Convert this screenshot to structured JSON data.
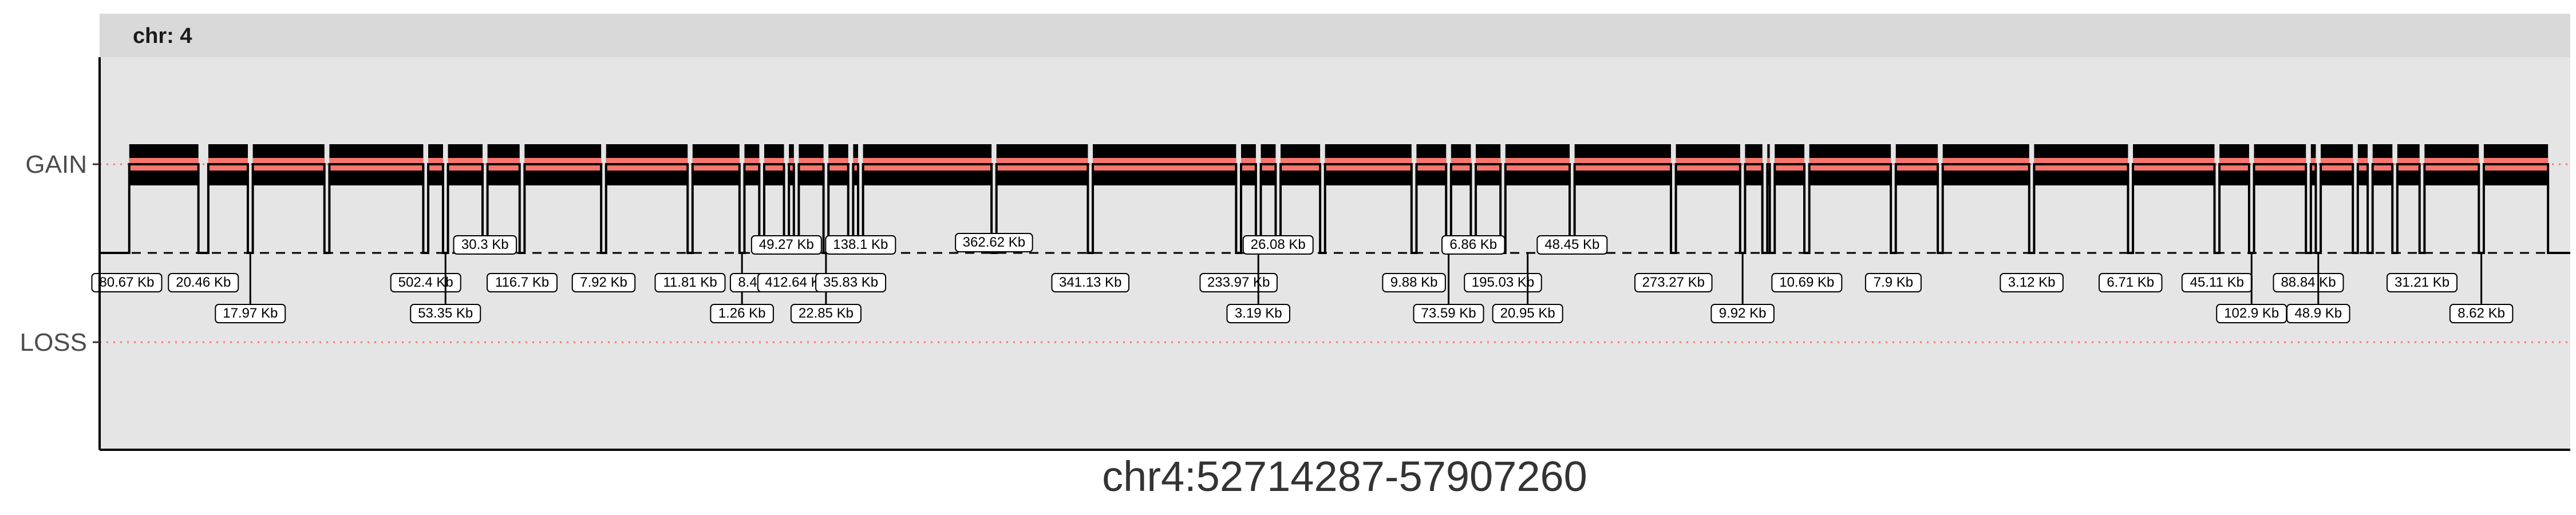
{
  "chart_data": {
    "type": "line",
    "panel_strip": "chr: 4",
    "xlabel": "chr4:52714287-57907260",
    "ylabel": "",
    "y_levels": [
      "GAIN",
      "LOSS"
    ],
    "ylim": [
      -1.6,
      1.3
    ],
    "xlim": [
      0,
      1
    ],
    "grid": false,
    "legend": "none",
    "colors": {
      "panel_bg": "#e5e5e5",
      "strip_bg": "#d9d9d9",
      "gain_band": "#f8766d",
      "loss_line": "#f8766d",
      "trace": "#000000",
      "axis": "#000000"
    },
    "gain_segments": [
      [
        0.012,
        0.04
      ],
      [
        0.044,
        0.06
      ],
      [
        0.062,
        0.091
      ],
      [
        0.093,
        0.131
      ],
      [
        0.133,
        0.139
      ],
      [
        0.141,
        0.155
      ],
      [
        0.157,
        0.17
      ],
      [
        0.172,
        0.203
      ],
      [
        0.205,
        0.238
      ],
      [
        0.24,
        0.259
      ],
      [
        0.261,
        0.267
      ],
      [
        0.269,
        0.277
      ],
      [
        0.279,
        0.281
      ],
      [
        0.283,
        0.293
      ],
      [
        0.295,
        0.303
      ],
      [
        0.305,
        0.307
      ],
      [
        0.309,
        0.361
      ],
      [
        0.363,
        0.4
      ],
      [
        0.402,
        0.46
      ],
      [
        0.462,
        0.468
      ],
      [
        0.47,
        0.476
      ],
      [
        0.478,
        0.494
      ],
      [
        0.496,
        0.531
      ],
      [
        0.533,
        0.545
      ],
      [
        0.547,
        0.555
      ],
      [
        0.557,
        0.567
      ],
      [
        0.569,
        0.595
      ],
      [
        0.597,
        0.636
      ],
      [
        0.638,
        0.664
      ],
      [
        0.666,
        0.673
      ],
      [
        0.675,
        0.676
      ],
      [
        0.678,
        0.69
      ],
      [
        0.692,
        0.725
      ],
      [
        0.727,
        0.744
      ],
      [
        0.746,
        0.781
      ],
      [
        0.783,
        0.821
      ],
      [
        0.823,
        0.856
      ],
      [
        0.858,
        0.87
      ],
      [
        0.872,
        0.893
      ],
      [
        0.895,
        0.897
      ],
      [
        0.899,
        0.912
      ],
      [
        0.914,
        0.918
      ],
      [
        0.92,
        0.928
      ],
      [
        0.93,
        0.939
      ],
      [
        0.941,
        0.963
      ],
      [
        0.965,
        0.991
      ]
    ],
    "gaps": [
      {
        "label": "80.67 Kb",
        "x": 0.011,
        "depth": 0
      },
      {
        "label": "20.46 Kb",
        "x": 0.042,
        "depth": 0
      },
      {
        "label": "17.97 Kb",
        "x": 0.061,
        "depth": 0
      },
      {
        "label": "502.4 Kb",
        "x": 0.132,
        "depth": 0
      },
      {
        "label": "53.35 Kb",
        "x": 0.14,
        "depth": 0
      },
      {
        "label": "30.3 Kb",
        "x": 0.156,
        "depth": 0
      },
      {
        "label": "116.7 Kb",
        "x": 0.171,
        "depth": 0
      },
      {
        "label": "7.92 Kb",
        "x": 0.204,
        "depth": 0
      },
      {
        "label": "11.81 Kb",
        "x": 0.239,
        "depth": 0
      },
      {
        "label": "1.26 Kb",
        "x": 0.26,
        "depth": 0
      },
      {
        "label": "8.45 Kb",
        "x": 0.268,
        "depth": 0
      },
      {
        "label": "49.27 Kb",
        "x": 0.278,
        "depth": 0
      },
      {
        "label": "412.64 Kb",
        "x": 0.282,
        "depth": 0
      },
      {
        "label": "22.85 Kb",
        "x": 0.294,
        "depth": 0
      },
      {
        "label": "35.83 Kb",
        "x": 0.304,
        "depth": 0
      },
      {
        "label": "138.1 Kb",
        "x": 0.308,
        "depth": 0
      },
      {
        "label": "362.62 Kb",
        "x": 0.362,
        "depth": 0.08
      },
      {
        "label": "341.13 Kb",
        "x": 0.401,
        "depth": 0
      },
      {
        "label": "233.97 Kb",
        "x": 0.461,
        "depth": 0
      },
      {
        "label": "3.19 Kb",
        "x": 0.469,
        "depth": 0
      },
      {
        "label": "26.08 Kb",
        "x": 0.477,
        "depth": 0
      },
      {
        "label": "9.88 Kb",
        "x": 0.532,
        "depth": 0
      },
      {
        "label": "73.59 Kb",
        "x": 0.546,
        "depth": 0
      },
      {
        "label": "6.86 Kb",
        "x": 0.556,
        "depth": 0
      },
      {
        "label": "195.03 Kb",
        "x": 0.568,
        "depth": 0
      },
      {
        "label": "20.95 Kb",
        "x": 0.578,
        "depth": 0
      },
      {
        "label": "48.45 Kb",
        "x": 0.596,
        "depth": 0
      },
      {
        "label": "273.27 Kb",
        "x": 0.637,
        "depth": 0
      },
      {
        "label": "9.92 Kb",
        "x": 0.665,
        "depth": 0
      },
      {
        "label": "10.69 Kb",
        "x": 0.691,
        "depth": 0
      },
      {
        "label": "7.9 Kb",
        "x": 0.726,
        "depth": 0
      },
      {
        "label": "3.12 Kb",
        "x": 0.782,
        "depth": 0
      },
      {
        "label": "6.71 Kb",
        "x": 0.822,
        "depth": 0
      },
      {
        "label": "45.11 Kb",
        "x": 0.857,
        "depth": 0
      },
      {
        "label": "102.9 Kb",
        "x": 0.871,
        "depth": 0
      },
      {
        "label": "88.84 Kb",
        "x": 0.894,
        "depth": 0
      },
      {
        "label": "48.9 Kb",
        "x": 0.898,
        "depth": 0
      },
      {
        "label": "31.21 Kb",
        "x": 0.94,
        "depth": 0
      },
      {
        "label": "8.62 Kb",
        "x": 0.964,
        "depth": 0
      }
    ]
  }
}
